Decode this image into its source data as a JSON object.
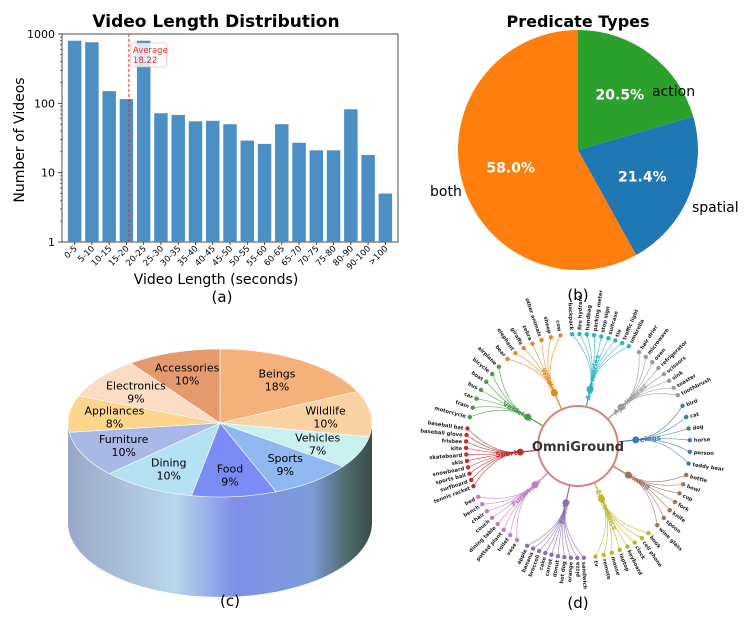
{
  "chart_data": [
    {
      "type": "bar",
      "title": "Video Length Distribution",
      "xlabel": "Video Length (seconds)",
      "ylabel": "Number of Videos",
      "yscale": "log",
      "ylim": [
        1,
        1000
      ],
      "yticks": [
        "1",
        "10",
        "100",
        "1000"
      ],
      "categories": [
        "0-5",
        "5-10",
        "10-15",
        "15-20",
        "20-25",
        "25-30",
        "30-35",
        "35-40",
        "40-45",
        "45-50",
        "50-55",
        "55-60",
        "60-65",
        "65-70",
        "70-75",
        "75-80",
        "80-90",
        "90-100",
        ">100"
      ],
      "values": [
        800,
        760,
        150,
        115,
        800,
        72,
        68,
        55,
        56,
        50,
        29,
        26,
        50,
        27,
        21,
        21,
        82,
        18,
        5
      ],
      "color": "#4c8fc5",
      "annotation": {
        "line1": "Average",
        "line2": "18.22",
        "value": 18.22
      },
      "caption": "(a)"
    },
    {
      "type": "pie",
      "title": "Predicate Types",
      "slices": [
        {
          "label": "action",
          "value": 20.5,
          "pct": "20.5%",
          "color": "#2ca02c"
        },
        {
          "label": "spatial",
          "value": 21.4,
          "pct": "21.4%",
          "color": "#1f77b4"
        },
        {
          "label": "both",
          "value": 58.0,
          "pct": "58.0%",
          "color": "#ff7f0e"
        }
      ],
      "caption": "(b)"
    },
    {
      "type": "pie",
      "style": "3d",
      "slices": [
        {
          "label": "Beings",
          "pct": "18%",
          "value": 18,
          "color": "#f4b27a"
        },
        {
          "label": "Wildlife",
          "pct": "10%",
          "value": 10,
          "color": "#fbd2a4"
        },
        {
          "label": "Vehicles",
          "pct": "7%",
          "value": 7,
          "color": "#c8f1ef"
        },
        {
          "label": "Sports",
          "pct": "9%",
          "value": 9,
          "color": "#8fb7f0"
        },
        {
          "label": "Food",
          "pct": "9%",
          "value": 9,
          "color": "#7b8cf7"
        },
        {
          "label": "Dining",
          "pct": "10%",
          "value": 10,
          "color": "#b4e2f4"
        },
        {
          "label": "Furniture",
          "pct": "10%",
          "value": 10,
          "color": "#aab8e8"
        },
        {
          "label": "Appliances",
          "pct": "8%",
          "value": 8,
          "color": "#fdd58d"
        },
        {
          "label": "Electronics",
          "pct": "9%",
          "value": 9,
          "color": "#fcdcc2"
        },
        {
          "label": "Accessories",
          "pct": "10%",
          "value": 10,
          "color": "#e59a6d"
        }
      ],
      "caption": "(c)"
    },
    {
      "type": "tree",
      "center": "OmniGround",
      "branches": [
        {
          "name": "Vehicles",
          "color": "#4a9a4a",
          "leaves": [
            "motorcycle",
            "train",
            "car",
            "bus",
            "boat",
            "bicycle",
            "airplane"
          ]
        },
        {
          "name": "Wildlife",
          "color": "#e08a2a",
          "leaves": [
            "bear",
            "elephant",
            "giraffe",
            "zebra",
            "other animals",
            "sheep",
            "cow"
          ]
        },
        {
          "name": "Accessories",
          "color": "#2fb3c0",
          "leaves": [
            "backpack",
            "fire hydrant",
            "handbag",
            "parking meter",
            "stop sign",
            "suitcase",
            "tie",
            "traffic light",
            "umbrella"
          ]
        },
        {
          "name": "Appliances",
          "color": "#9a9a9a",
          "leaves": [
            "hair drier",
            "microwave",
            "oven",
            "refrigerator",
            "scissors",
            "sink",
            "toaster",
            "toothbrush"
          ]
        },
        {
          "name": "Beings",
          "color": "#3a7ab5",
          "leaves": [
            "bird",
            "cat",
            "dog",
            "horse",
            "person",
            "teddy bear"
          ]
        },
        {
          "name": "Dining",
          "color": "#a07060",
          "leaves": [
            "bottle",
            "bowl",
            "cup",
            "fork",
            "knife",
            "spoon",
            "wine glass"
          ]
        },
        {
          "name": "Electronics",
          "color": "#b8b830",
          "leaves": [
            "book",
            "cell phone",
            "clock",
            "keyboard",
            "laptop",
            "mouse",
            "remote",
            "tv"
          ]
        },
        {
          "name": "Food",
          "color": "#8a70b0",
          "leaves": [
            "sandwich",
            "pizza",
            "orange",
            "hot dog",
            "donut",
            "carrot",
            "cake",
            "broccoli",
            "banana",
            "apple"
          ]
        },
        {
          "name": "Furniture",
          "color": "#c080c0",
          "leaves": [
            "vase",
            "toilet",
            "potted plant",
            "dining table",
            "couch",
            "chair",
            "bench",
            "bed"
          ]
        },
        {
          "name": "Sports",
          "color": "#c03030",
          "leaves": [
            "tennis racket",
            "surfboard",
            "sports ball",
            "snowboard",
            "skis",
            "skateboard",
            "kite",
            "frisbee",
            "baseball glove",
            "baseball bat"
          ]
        }
      ],
      "caption": "(d)"
    }
  ]
}
